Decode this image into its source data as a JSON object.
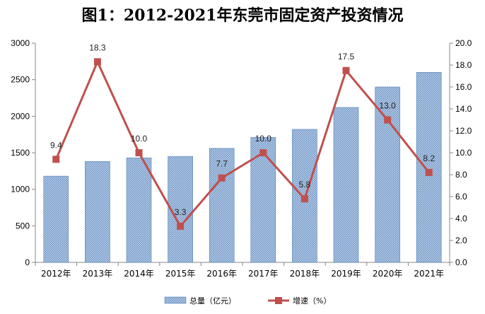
{
  "chart_data": {
    "type": "bar+line",
    "title": "图1：2012-2021年东莞市固定资产投资情况",
    "categories": [
      "2012年",
      "2013年",
      "2014年",
      "2015年",
      "2016年",
      "2017年",
      "2018年",
      "2019年",
      "2020年",
      "2021年"
    ],
    "series": [
      {
        "name": "总量（亿元）",
        "type": "bar",
        "axis": "left",
        "values": [
          1180,
          1380,
          1430,
          1450,
          1560,
          1710,
          1820,
          2120,
          2400,
          2600
        ]
      },
      {
        "name": "增速（%）",
        "type": "line",
        "axis": "right",
        "values": [
          9.4,
          18.3,
          10.0,
          3.3,
          7.7,
          10.0,
          5.8,
          17.5,
          13.0,
          8.2
        ],
        "labels": [
          "9.4",
          "18.3",
          "10.0",
          "3.3",
          "7.7",
          "10.0",
          "5.8",
          "17.5",
          "13.0",
          "8.2"
        ]
      }
    ],
    "ylim_left": [
      0,
      3000
    ],
    "yticks_left": [
      "0",
      "500",
      "1000",
      "1500",
      "2000",
      "2500",
      "3000"
    ],
    "ylim_right": [
      0,
      20
    ],
    "yticks_right": [
      "0.0",
      "2.0",
      "4.0",
      "6.0",
      "8.0",
      "10.0",
      "12.0",
      "14.0",
      "16.0",
      "18.0",
      "20.0"
    ],
    "grid": false,
    "legend_position": "bottom",
    "colors": {
      "bar_fill": "#9fb9d9",
      "bar_stroke": "#4f7fb8",
      "line": "#c0504d"
    }
  }
}
